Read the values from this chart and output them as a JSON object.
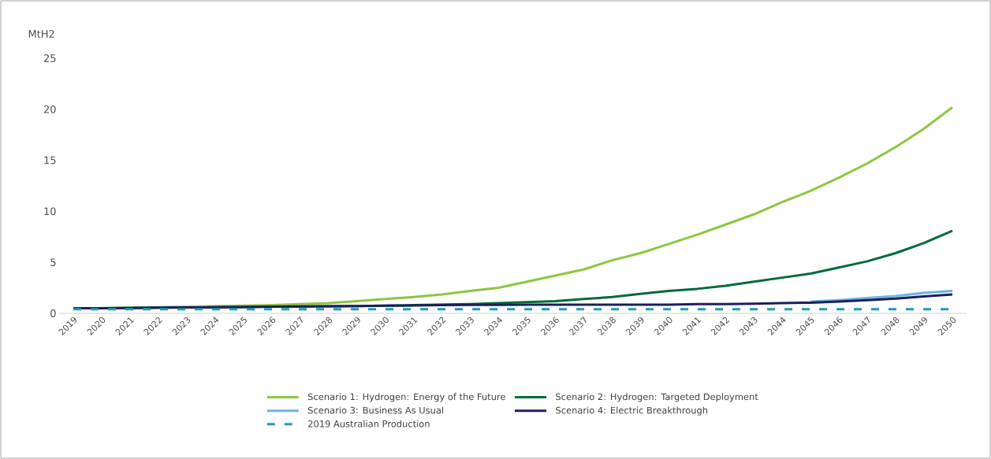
{
  "chart_data": {
    "type": "line",
    "ylabel": "MtH2",
    "categories": [
      "2019",
      "2020",
      "2021",
      "2022",
      "2023",
      "2024",
      "2025",
      "2026",
      "2027",
      "2028",
      "2029",
      "2030",
      "2031",
      "2032",
      "2033",
      "2034",
      "2035",
      "2036",
      "2037",
      "2038",
      "2039",
      "2040",
      "2041",
      "2042",
      "2043",
      "2044",
      "2045",
      "2046",
      "2047",
      "2048",
      "2049",
      "2050"
    ],
    "series": [
      {
        "name": "Scenario 1: Hydrogen: Energy of the Future",
        "color": "#8dc63f",
        "line_style": "solid",
        "values": [
          0.5,
          0.5,
          0.55,
          0.6,
          0.65,
          0.7,
          0.75,
          0.8,
          0.9,
          1.0,
          1.2,
          1.4,
          1.6,
          1.85,
          2.2,
          2.5,
          3.1,
          3.7,
          4.3,
          5.2,
          5.9,
          6.8,
          7.7,
          8.7,
          9.7,
          10.9,
          12.0,
          13.3,
          14.7,
          16.3,
          18.1,
          20.2
        ]
      },
      {
        "name": "Scenario 2: Hydrogen: Targeted Deployment",
        "color": "#006b3a",
        "line_style": "solid",
        "values": [
          0.5,
          0.5,
          0.52,
          0.55,
          0.57,
          0.6,
          0.62,
          0.65,
          0.67,
          0.7,
          0.72,
          0.75,
          0.8,
          0.85,
          0.9,
          1.0,
          1.1,
          1.2,
          1.4,
          1.6,
          1.9,
          2.2,
          2.4,
          2.7,
          3.1,
          3.5,
          3.9,
          4.5,
          5.1,
          5.9,
          6.9,
          8.1
        ]
      },
      {
        "name": "Scenario 3: Business As Usual",
        "color": "#6cb4e4",
        "line_style": "solid",
        "values": [
          null,
          null,
          null,
          null,
          null,
          null,
          null,
          null,
          null,
          null,
          null,
          null,
          null,
          null,
          null,
          null,
          null,
          null,
          null,
          null,
          null,
          null,
          null,
          null,
          null,
          null,
          1.15,
          1.3,
          1.5,
          1.7,
          2.0,
          2.2
        ]
      },
      {
        "name": "Scenario 4: Electric Breakthrough",
        "color": "#1b1f5e",
        "line_style": "solid",
        "values": [
          0.5,
          0.5,
          0.52,
          0.55,
          0.57,
          0.6,
          0.62,
          0.65,
          0.67,
          0.7,
          0.72,
          0.75,
          0.77,
          0.8,
          0.82,
          0.83,
          0.85,
          0.85,
          0.85,
          0.85,
          0.85,
          0.85,
          0.9,
          0.9,
          0.95,
          1.0,
          1.05,
          1.15,
          1.3,
          1.45,
          1.65,
          1.85
        ]
      },
      {
        "name": "2019 Australian Production",
        "color": "#1e9bb5",
        "line_style": "dashed",
        "values": [
          0.4,
          0.4,
          0.4,
          0.4,
          0.4,
          0.4,
          0.4,
          0.4,
          0.4,
          0.4,
          0.4,
          0.4,
          0.4,
          0.4,
          0.4,
          0.4,
          0.4,
          0.4,
          0.4,
          0.4,
          0.4,
          0.4,
          0.4,
          0.4,
          0.4,
          0.4,
          0.4,
          0.4,
          0.4,
          0.4,
          0.4,
          0.4
        ]
      }
    ],
    "ylim": [
      0,
      25
    ],
    "yticks": [
      0,
      5,
      10,
      15,
      20,
      25
    ],
    "legend": "bottom"
  }
}
